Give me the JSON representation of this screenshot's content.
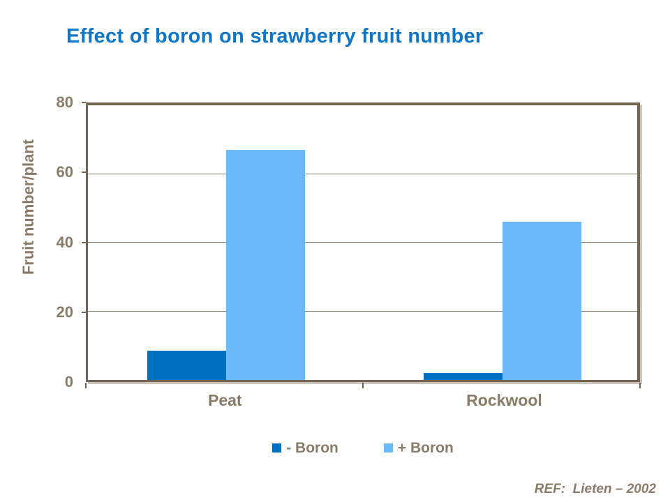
{
  "title": "Effect of boron on strawberry fruit number",
  "reference": "REF:  Lieten – 2002",
  "colors": {
    "title_blue": "#0D76C8",
    "taupe_text": "#8A7A68",
    "frame_brown": "#746450",
    "minus_boron_blue": "#0070C0",
    "plus_boron_blue": "#6CBAF9",
    "background": "#FFFFFF"
  },
  "chart_data": {
    "type": "bar",
    "title": "Effect of boron on strawberry fruit number",
    "categories": [
      "Peat",
      "Rockwool"
    ],
    "series": [
      {
        "name": "- Boron",
        "values": [
          8.5,
          2
        ],
        "color": "#0070C0"
      },
      {
        "name": "+ Boron",
        "values": [
          67,
          46
        ],
        "color": "#6CBAF9"
      }
    ],
    "xlabel": "",
    "ylabel": "Fruit number/plant",
    "ylim": [
      0,
      80
    ],
    "yticks": [
      0,
      20,
      40,
      60,
      80
    ],
    "grid": true,
    "legend_position": "bottom"
  }
}
